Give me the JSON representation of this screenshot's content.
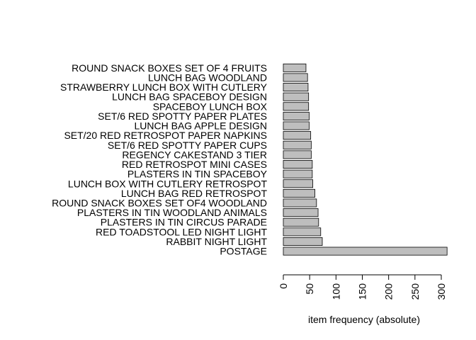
{
  "chart_data": {
    "type": "bar",
    "orientation": "horizontal",
    "title": "",
    "xlabel": "item frequency (absolute)",
    "ylabel": "",
    "xlim": [
      0,
      310
    ],
    "xticks": [
      0,
      50,
      100,
      150,
      200,
      250,
      300
    ],
    "bar_color": "#bebebe",
    "grid": false,
    "categories": [
      "ROUND SNACK BOXES SET OF 4 FRUITS",
      "LUNCH BAG WOODLAND",
      "STRAWBERRY LUNCH BOX WITH CUTLERY",
      "LUNCH BAG SPACEBOY DESIGN",
      "SPACEBOY LUNCH BOX",
      "SET/6 RED SPOTTY PAPER PLATES",
      "LUNCH BAG APPLE DESIGN",
      "SET/20 RED RETROSPOT PAPER NAPKINS",
      "SET/6 RED SPOTTY PAPER CUPS",
      "REGENCY CAKESTAND 3 TIER",
      "RED RETROSPOT MINI CASES",
      "PLASTERS IN TIN SPACEBOY",
      "LUNCH BOX WITH CUTLERY RETROSPOT",
      "LUNCH BAG RED RETROSPOT",
      "ROUND SNACK BOXES SET OF4 WOODLAND",
      "PLASTERS IN TIN WOODLAND ANIMALS",
      "PLASTERS IN TIN CIRCUS PARADE",
      "RED TOADSTOOL LED NIGHT LIGHT",
      "RABBIT NIGHT LIGHT",
      "POSTAGE"
    ],
    "values": [
      43,
      46,
      47,
      48,
      48,
      49,
      49,
      52,
      53,
      53,
      55,
      55,
      56,
      60,
      63,
      66,
      67,
      71,
      74,
      311
    ]
  }
}
